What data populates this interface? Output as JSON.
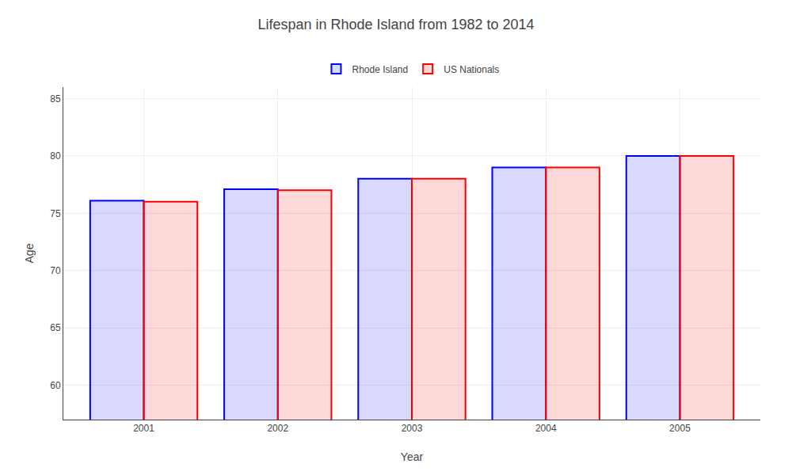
{
  "chart_data": {
    "type": "bar",
    "title": "Lifespan in Rhode Island from 1982 to 2014",
    "x_label": "Year",
    "y_label": "Age",
    "categories": [
      "2001",
      "2002",
      "2003",
      "2004",
      "2005"
    ],
    "series": [
      {
        "name": "Rhode Island",
        "color": "#0000ff",
        "values": [
          76.1,
          77.1,
          78.0,
          79.0,
          80.0
        ]
      },
      {
        "name": "US Nationals",
        "color": "#ff0000",
        "values": [
          76.0,
          77.0,
          78.0,
          79.0,
          80.0
        ]
      }
    ],
    "ylim": [
      57,
      86
    ],
    "yticks": [
      60,
      65,
      70,
      75,
      80,
      85
    ],
    "grid": true,
    "legend": "top"
  }
}
